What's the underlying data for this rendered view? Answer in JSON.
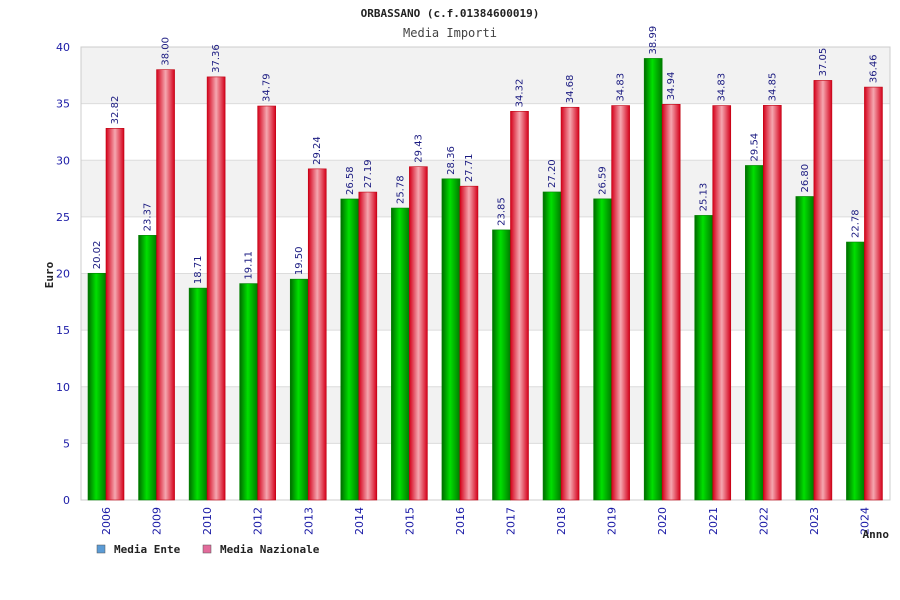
{
  "chart_data": {
    "type": "bar",
    "title": "ORBASSANO (c.f.01384600019)",
    "subtitle": "Media Importi",
    "xlabel": "Anno",
    "ylabel": "Euro",
    "ylim": [
      0,
      40
    ],
    "yticks": [
      "0",
      "5",
      "10",
      "15",
      "20",
      "25",
      "30",
      "35",
      "40"
    ],
    "categories": [
      "2006",
      "2009",
      "2010",
      "2012",
      "2013",
      "2014",
      "2015",
      "2016",
      "2017",
      "2018",
      "2019",
      "2020",
      "2021",
      "2022",
      "2023",
      "2024"
    ],
    "series": [
      {
        "name": "Media Ente",
        "legend_color": "#5b9bd5",
        "color": "#00b400",
        "values": [
          20.02,
          23.37,
          18.71,
          19.11,
          19.5,
          26.58,
          25.78,
          28.36,
          23.85,
          27.2,
          26.59,
          38.99,
          25.13,
          29.54,
          26.8,
          22.78
        ],
        "labels": [
          "20.02",
          "23.37",
          "18.71",
          "19.11",
          "19.50",
          "26.58",
          "25.78",
          "28.36",
          "23.85",
          "27.20",
          "26.59",
          "38.99",
          "25.13",
          "29.54",
          "26.80",
          "22.78"
        ]
      },
      {
        "name": "Media Nazionale",
        "legend_color": "#e26b9b",
        "color": "#e8101e",
        "values": [
          32.82,
          38.0,
          37.36,
          34.79,
          29.24,
          27.19,
          29.43,
          27.71,
          34.32,
          34.68,
          34.83,
          34.94,
          34.83,
          34.85,
          37.05,
          36.46
        ],
        "labels": [
          "32.82",
          "38.00",
          "37.36",
          "34.79",
          "29.24",
          "27.19",
          "29.43",
          "27.71",
          "34.32",
          "34.68",
          "34.83",
          "34.94",
          "34.83",
          "34.85",
          "37.05",
          "36.46"
        ]
      }
    ],
    "grid": true,
    "legend_position": "bottom-left"
  }
}
